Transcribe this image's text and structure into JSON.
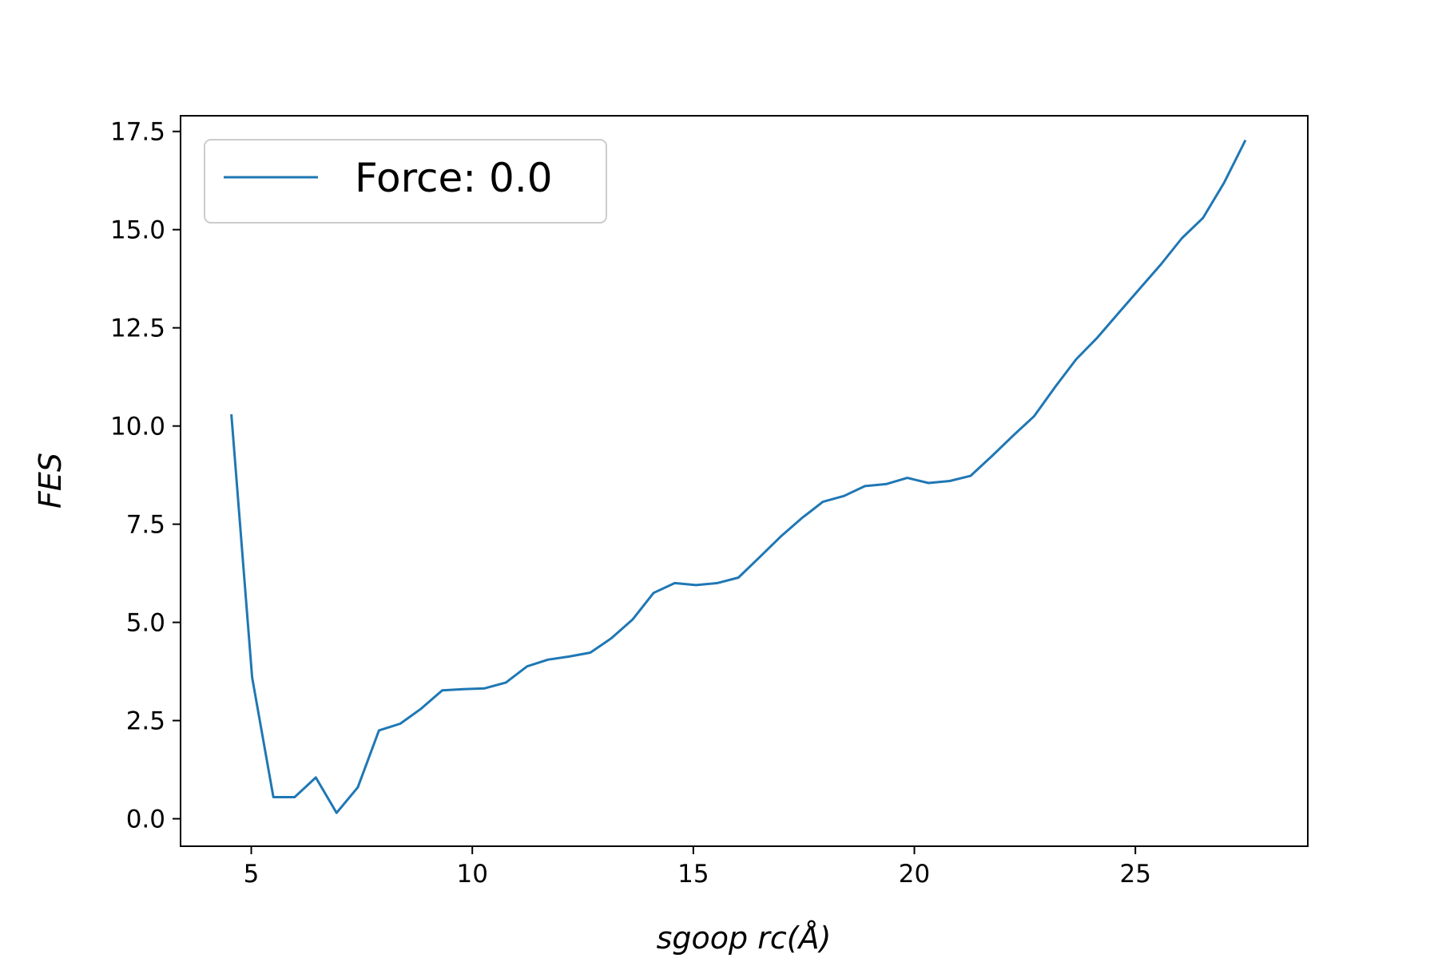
{
  "chart_data": {
    "type": "line",
    "title": "",
    "xlabel": "sgoop rc(Å)",
    "ylabel": "FES",
    "xlim": [
      3.4,
      28.9
    ],
    "ylim": [
      -0.7,
      17.9
    ],
    "xticks": [
      5,
      10,
      15,
      20,
      25
    ],
    "xtick_labels": [
      "5",
      "10",
      "15",
      "20",
      "25"
    ],
    "yticks": [
      0.0,
      2.5,
      5.0,
      7.5,
      10.0,
      12.5,
      15.0,
      17.5
    ],
    "ytick_labels": [
      "0.0",
      "2.5",
      "5.0",
      "7.5",
      "10.0",
      "12.5",
      "15.0",
      "17.5"
    ],
    "grid": false,
    "legend_position": "upper-left",
    "series": [
      {
        "name": "Force: 0.0",
        "color": "#1f77b4",
        "x": [
          4.55,
          5.02,
          5.5,
          5.98,
          6.46,
          6.93,
          7.41,
          7.89,
          8.37,
          8.84,
          9.32,
          9.8,
          10.28,
          10.76,
          11.24,
          11.71,
          12.19,
          12.67,
          13.15,
          13.63,
          14.1,
          14.58,
          15.06,
          15.54,
          16.02,
          16.49,
          16.97,
          17.45,
          17.93,
          18.41,
          18.88,
          19.36,
          19.84,
          20.32,
          20.8,
          21.27,
          21.75,
          22.23,
          22.71,
          23.19,
          23.66,
          24.14,
          24.62,
          25.1,
          25.58,
          26.05,
          26.53,
          27.01,
          27.49
        ],
        "y": [
          10.3,
          3.6,
          0.55,
          0.55,
          1.05,
          0.15,
          0.8,
          2.25,
          2.42,
          2.8,
          3.27,
          3.3,
          3.32,
          3.47,
          3.88,
          4.05,
          4.13,
          4.23,
          4.6,
          5.08,
          5.75,
          6.0,
          5.95,
          6.0,
          6.14,
          6.65,
          7.18,
          7.65,
          8.07,
          8.22,
          8.47,
          8.52,
          8.68,
          8.55,
          8.6,
          8.73,
          9.23,
          9.75,
          10.25,
          11.0,
          11.7,
          12.25,
          12.88,
          13.5,
          14.12,
          14.78,
          15.3,
          16.2,
          17.28
        ]
      }
    ]
  }
}
